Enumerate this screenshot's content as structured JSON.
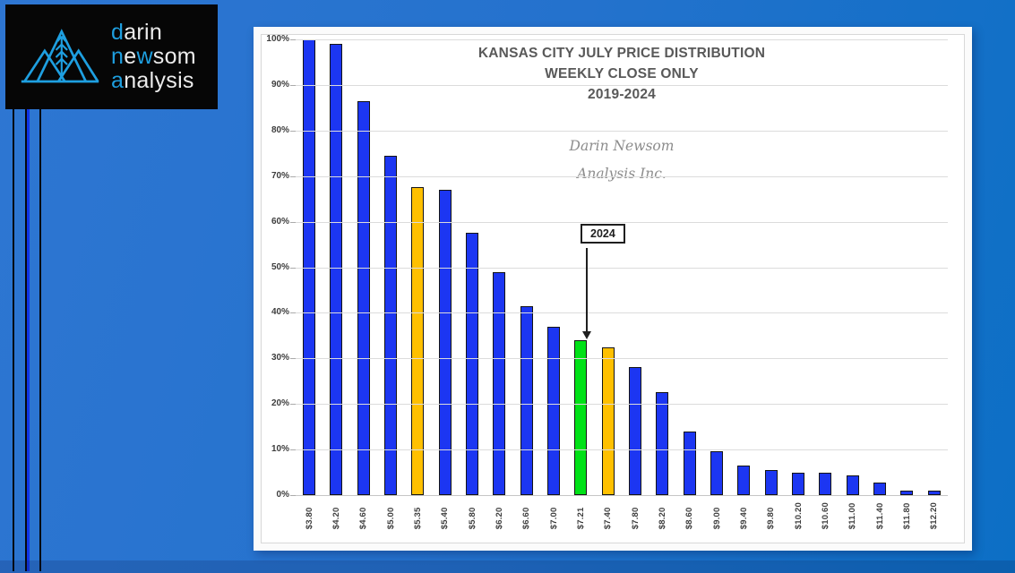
{
  "logo": {
    "accent_color": "#1e9fe0",
    "words": [
      {
        "segments": [
          {
            "text": "d",
            "accent": true
          },
          {
            "text": "arin",
            "accent": false
          }
        ]
      },
      {
        "segments": [
          {
            "text": "n",
            "accent": true
          },
          {
            "text": "e",
            "accent": false
          },
          {
            "text": "w",
            "accent": true
          },
          {
            "text": "som",
            "accent": false
          }
        ]
      },
      {
        "segments": [
          {
            "text": "a",
            "accent": true
          },
          {
            "text": "nalysis",
            "accent": false
          }
        ]
      }
    ]
  },
  "chart_data": {
    "type": "bar",
    "title": "KANSAS CITY JULY PRICE DISTRIBUTION",
    "subtitle": "WEEKLY CLOSE ONLY",
    "range": "2019-2024",
    "watermark_line1": "Darin Newsom",
    "watermark_line2": "Analysis Inc.",
    "ylim": [
      0,
      100
    ],
    "grid": true,
    "legend": "none",
    "yticks": [
      "100%",
      "90%",
      "80%",
      "70%",
      "60%",
      "50%",
      "40%",
      "30%",
      "20%",
      "10%",
      "0%"
    ],
    "categories": [
      "$3.80",
      "$4.20",
      "$4.60",
      "$5.00",
      "$5.35",
      "$5.40",
      "$5.80",
      "$6.20",
      "$6.60",
      "$7.00",
      "$7.21",
      "$7.40",
      "$7.80",
      "$8.20",
      "$8.60",
      "$9.00",
      "$9.40",
      "$9.80",
      "$10.20",
      "$10.60",
      "$11.00",
      "$11.40",
      "$11.80",
      "$12.20"
    ],
    "values": [
      100,
      99,
      86.5,
      74.5,
      67.5,
      67,
      57.5,
      49,
      41.5,
      37,
      34,
      32.5,
      28,
      22.5,
      14,
      9.7,
      6.5,
      5.5,
      5,
      5,
      4.3,
      2.7,
      1,
      1
    ],
    "colors": [
      "blue",
      "blue",
      "blue",
      "blue",
      "gold",
      "blue",
      "blue",
      "blue",
      "blue",
      "blue",
      "green",
      "gold",
      "blue",
      "blue",
      "blue",
      "blue",
      "blue",
      "blue",
      "blue",
      "blue",
      "blue",
      "blue",
      "blue",
      "blue"
    ],
    "color_map": {
      "blue": "#1c36f2",
      "gold": "#ffc000",
      "green": "#00e117"
    },
    "annotation": {
      "label": "2024",
      "target_category": "$7.21"
    }
  }
}
